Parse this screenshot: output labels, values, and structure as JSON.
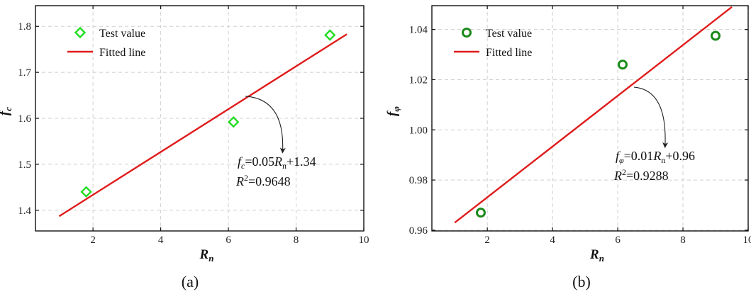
{
  "chart_data": [
    {
      "type": "scatter",
      "panel_label": "(a)",
      "xlabel": "R",
      "xlabel_sub": "n",
      "ylabel": "f",
      "ylabel_sub": "c",
      "xlim": [
        0.3,
        10
      ],
      "ylim": [
        1.355,
        1.845
      ],
      "xticks": [
        2,
        4,
        6,
        8,
        10
      ],
      "xtick_labels": [
        "2",
        "4",
        "6",
        "8",
        "10"
      ],
      "yticks": [
        1.4,
        1.5,
        1.6,
        1.7,
        1.8
      ],
      "ytick_labels": [
        "1.4",
        "1.5",
        "1.6",
        "1.7",
        "1.8"
      ],
      "grid": true,
      "legend_position": "top-left",
      "series": [
        {
          "name": "Test value",
          "kind": "scatter",
          "marker": "diamond",
          "color": "#22dd22",
          "x": [
            1.8,
            6.15,
            9.0
          ],
          "y": [
            1.44,
            1.592,
            1.781
          ]
        },
        {
          "name": "Fitted line",
          "kind": "line",
          "color": "#e01b1b",
          "x": [
            1.0,
            9.5
          ],
          "y": [
            1.387,
            1.783
          ]
        }
      ],
      "annotation": {
        "line1": [
          "f",
          "c",
          "=0.05",
          "R",
          "n",
          "+1.34"
        ],
        "line2": [
          "R",
          "2",
          "=0.9648"
        ],
        "arrow_from": [
          6.5,
          1.648
        ],
        "arrow_to": [
          7.6,
          1.525
        ]
      }
    },
    {
      "type": "scatter",
      "panel_label": "(b)",
      "xlabel": "R",
      "xlabel_sub": "n",
      "ylabel": "f",
      "ylabel_sub": "φ",
      "xlim": [
        0.3,
        10
      ],
      "ylim": [
        0.9597,
        1.0495
      ],
      "xticks": [
        2,
        4,
        6,
        8,
        10
      ],
      "xtick_labels": [
        "2",
        "4",
        "6",
        "8",
        "10"
      ],
      "yticks": [
        0.96,
        0.98,
        1.0,
        1.02,
        1.04
      ],
      "ytick_labels": [
        "0.96",
        "0.98",
        "1.00",
        "1.02",
        "1.04"
      ],
      "grid": true,
      "legend_position": "top-left",
      "series": [
        {
          "name": "Test value",
          "kind": "scatter",
          "marker": "circle",
          "color": "#1a8a1a",
          "x": [
            1.8,
            6.15,
            9.0
          ],
          "y": [
            0.967,
            1.026,
            1.0375
          ]
        },
        {
          "name": "Fitted line",
          "kind": "line",
          "color": "#e01b1b",
          "x": [
            1.0,
            9.5
          ],
          "y": [
            0.963,
            1.049
          ]
        }
      ],
      "annotation": {
        "line1": [
          "f",
          "φ",
          "=0.01",
          "R",
          "n",
          "+0.96"
        ],
        "line2": [
          "R",
          "2",
          "=0.9288"
        ],
        "arrow_from": [
          6.5,
          1.017
        ],
        "arrow_to": [
          7.45,
          0.993
        ]
      }
    }
  ]
}
